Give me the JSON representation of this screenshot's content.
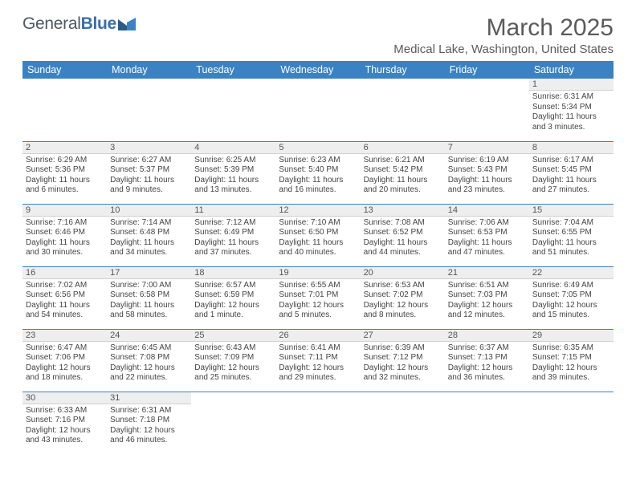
{
  "brand": {
    "part1": "General",
    "part2": "Blue"
  },
  "title": "March 2025",
  "location": "Medical Lake, Washington, United States",
  "colors": {
    "header_bg": "#3b82c4",
    "header_fg": "#ffffff",
    "daynum_bg": "#eeeeee",
    "row_border": "#3b82c4",
    "title_color": "#5a5a5a",
    "logo_gray": "#505860",
    "logo_blue": "#3a6fa8"
  },
  "fonts": {
    "title_size_pt": 22,
    "location_size_pt": 11,
    "header_size_pt": 9.5,
    "cell_size_pt": 7.5,
    "daynum_size_pt": 8.5
  },
  "weekdays": [
    "Sunday",
    "Monday",
    "Tuesday",
    "Wednesday",
    "Thursday",
    "Friday",
    "Saturday"
  ],
  "weeks": [
    [
      null,
      null,
      null,
      null,
      null,
      null,
      {
        "n": "1",
        "sr": "Sunrise: 6:31 AM",
        "ss": "Sunset: 5:34 PM",
        "dl": "Daylight: 11 hours and 3 minutes."
      }
    ],
    [
      {
        "n": "2",
        "sr": "Sunrise: 6:29 AM",
        "ss": "Sunset: 5:36 PM",
        "dl": "Daylight: 11 hours and 6 minutes."
      },
      {
        "n": "3",
        "sr": "Sunrise: 6:27 AM",
        "ss": "Sunset: 5:37 PM",
        "dl": "Daylight: 11 hours and 9 minutes."
      },
      {
        "n": "4",
        "sr": "Sunrise: 6:25 AM",
        "ss": "Sunset: 5:39 PM",
        "dl": "Daylight: 11 hours and 13 minutes."
      },
      {
        "n": "5",
        "sr": "Sunrise: 6:23 AM",
        "ss": "Sunset: 5:40 PM",
        "dl": "Daylight: 11 hours and 16 minutes."
      },
      {
        "n": "6",
        "sr": "Sunrise: 6:21 AM",
        "ss": "Sunset: 5:42 PM",
        "dl": "Daylight: 11 hours and 20 minutes."
      },
      {
        "n": "7",
        "sr": "Sunrise: 6:19 AM",
        "ss": "Sunset: 5:43 PM",
        "dl": "Daylight: 11 hours and 23 minutes."
      },
      {
        "n": "8",
        "sr": "Sunrise: 6:17 AM",
        "ss": "Sunset: 5:45 PM",
        "dl": "Daylight: 11 hours and 27 minutes."
      }
    ],
    [
      {
        "n": "9",
        "sr": "Sunrise: 7:16 AM",
        "ss": "Sunset: 6:46 PM",
        "dl": "Daylight: 11 hours and 30 minutes."
      },
      {
        "n": "10",
        "sr": "Sunrise: 7:14 AM",
        "ss": "Sunset: 6:48 PM",
        "dl": "Daylight: 11 hours and 34 minutes."
      },
      {
        "n": "11",
        "sr": "Sunrise: 7:12 AM",
        "ss": "Sunset: 6:49 PM",
        "dl": "Daylight: 11 hours and 37 minutes."
      },
      {
        "n": "12",
        "sr": "Sunrise: 7:10 AM",
        "ss": "Sunset: 6:50 PM",
        "dl": "Daylight: 11 hours and 40 minutes."
      },
      {
        "n": "13",
        "sr": "Sunrise: 7:08 AM",
        "ss": "Sunset: 6:52 PM",
        "dl": "Daylight: 11 hours and 44 minutes."
      },
      {
        "n": "14",
        "sr": "Sunrise: 7:06 AM",
        "ss": "Sunset: 6:53 PM",
        "dl": "Daylight: 11 hours and 47 minutes."
      },
      {
        "n": "15",
        "sr": "Sunrise: 7:04 AM",
        "ss": "Sunset: 6:55 PM",
        "dl": "Daylight: 11 hours and 51 minutes."
      }
    ],
    [
      {
        "n": "16",
        "sr": "Sunrise: 7:02 AM",
        "ss": "Sunset: 6:56 PM",
        "dl": "Daylight: 11 hours and 54 minutes."
      },
      {
        "n": "17",
        "sr": "Sunrise: 7:00 AM",
        "ss": "Sunset: 6:58 PM",
        "dl": "Daylight: 11 hours and 58 minutes."
      },
      {
        "n": "18",
        "sr": "Sunrise: 6:57 AM",
        "ss": "Sunset: 6:59 PM",
        "dl": "Daylight: 12 hours and 1 minute."
      },
      {
        "n": "19",
        "sr": "Sunrise: 6:55 AM",
        "ss": "Sunset: 7:01 PM",
        "dl": "Daylight: 12 hours and 5 minutes."
      },
      {
        "n": "20",
        "sr": "Sunrise: 6:53 AM",
        "ss": "Sunset: 7:02 PM",
        "dl": "Daylight: 12 hours and 8 minutes."
      },
      {
        "n": "21",
        "sr": "Sunrise: 6:51 AM",
        "ss": "Sunset: 7:03 PM",
        "dl": "Daylight: 12 hours and 12 minutes."
      },
      {
        "n": "22",
        "sr": "Sunrise: 6:49 AM",
        "ss": "Sunset: 7:05 PM",
        "dl": "Daylight: 12 hours and 15 minutes."
      }
    ],
    [
      {
        "n": "23",
        "sr": "Sunrise: 6:47 AM",
        "ss": "Sunset: 7:06 PM",
        "dl": "Daylight: 12 hours and 18 minutes."
      },
      {
        "n": "24",
        "sr": "Sunrise: 6:45 AM",
        "ss": "Sunset: 7:08 PM",
        "dl": "Daylight: 12 hours and 22 minutes."
      },
      {
        "n": "25",
        "sr": "Sunrise: 6:43 AM",
        "ss": "Sunset: 7:09 PM",
        "dl": "Daylight: 12 hours and 25 minutes."
      },
      {
        "n": "26",
        "sr": "Sunrise: 6:41 AM",
        "ss": "Sunset: 7:11 PM",
        "dl": "Daylight: 12 hours and 29 minutes."
      },
      {
        "n": "27",
        "sr": "Sunrise: 6:39 AM",
        "ss": "Sunset: 7:12 PM",
        "dl": "Daylight: 12 hours and 32 minutes."
      },
      {
        "n": "28",
        "sr": "Sunrise: 6:37 AM",
        "ss": "Sunset: 7:13 PM",
        "dl": "Daylight: 12 hours and 36 minutes."
      },
      {
        "n": "29",
        "sr": "Sunrise: 6:35 AM",
        "ss": "Sunset: 7:15 PM",
        "dl": "Daylight: 12 hours and 39 minutes."
      }
    ],
    [
      {
        "n": "30",
        "sr": "Sunrise: 6:33 AM",
        "ss": "Sunset: 7:16 PM",
        "dl": "Daylight: 12 hours and 43 minutes."
      },
      {
        "n": "31",
        "sr": "Sunrise: 6:31 AM",
        "ss": "Sunset: 7:18 PM",
        "dl": "Daylight: 12 hours and 46 minutes."
      },
      null,
      null,
      null,
      null,
      null
    ]
  ]
}
